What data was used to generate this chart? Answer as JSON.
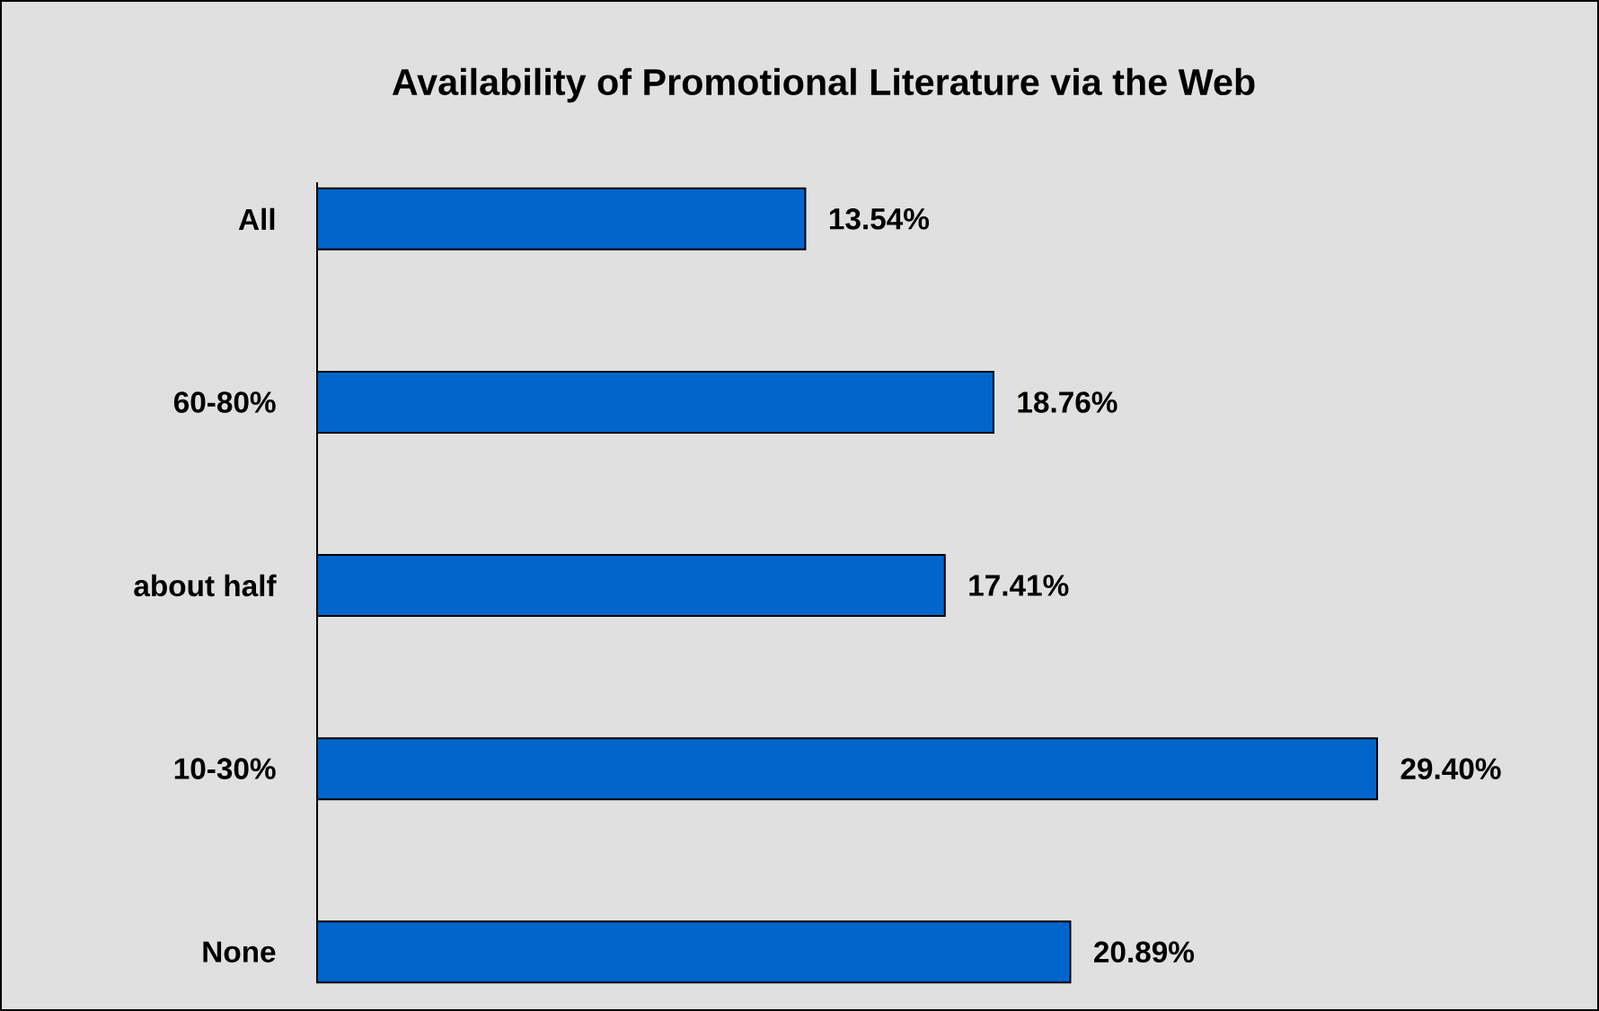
{
  "chart_data": {
    "type": "bar",
    "orientation": "horizontal",
    "title": "Availability of Promotional Literature via the Web",
    "categories": [
      "All",
      "60-80%",
      "about half",
      "10-30%",
      "None"
    ],
    "values": [
      13.54,
      18.76,
      17.41,
      29.4,
      20.89
    ],
    "value_labels": [
      "13.54%",
      "18.76%",
      "17.41%",
      "29.40%",
      "20.89%"
    ],
    "color": "#0066cc"
  }
}
